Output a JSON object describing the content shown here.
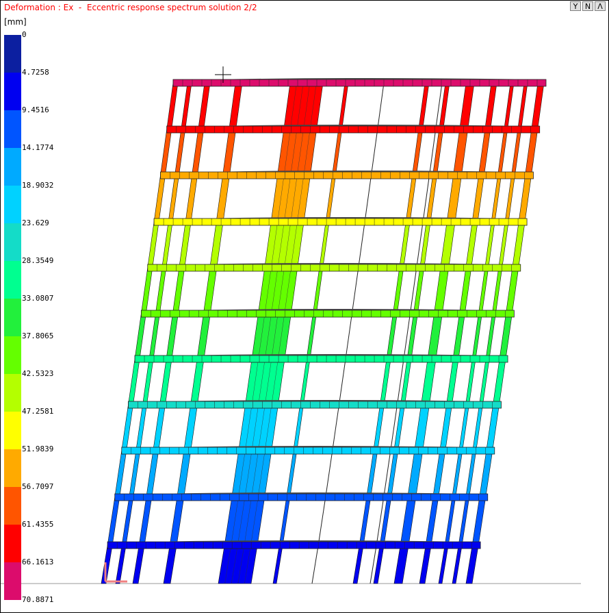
{
  "header": {
    "title": "Deformation : Ex  -  Eccentric response spectrum solution 2/2",
    "unit": "[mm]"
  },
  "view_buttons": [
    {
      "label": "Y",
      "icon": "filter-funnel-icon"
    },
    {
      "label": "N",
      "icon": "north-icon"
    },
    {
      "label": "Λ",
      "icon": "up-chevron-icon"
    }
  ],
  "legend": {
    "labels": [
      "0",
      "4.7258",
      "9.4516",
      "14.1774",
      "18.9032",
      "23.629",
      "28.3549",
      "33.0807",
      "37.8065",
      "42.5323",
      "47.2581",
      "51.9839",
      "56.7097",
      "61.4355",
      "66.1613",
      "70.8871"
    ],
    "colors": [
      "#0c1fa0",
      "#0000f0",
      "#0055ff",
      "#00aaff",
      "#00d2ff",
      "#14dcc8",
      "#00ff90",
      "#22f03c",
      "#64ff00",
      "#b4ff00",
      "#ffff00",
      "#ffaa00",
      "#ff5500",
      "#ff0000",
      "#dc0c6c"
    ]
  }
}
